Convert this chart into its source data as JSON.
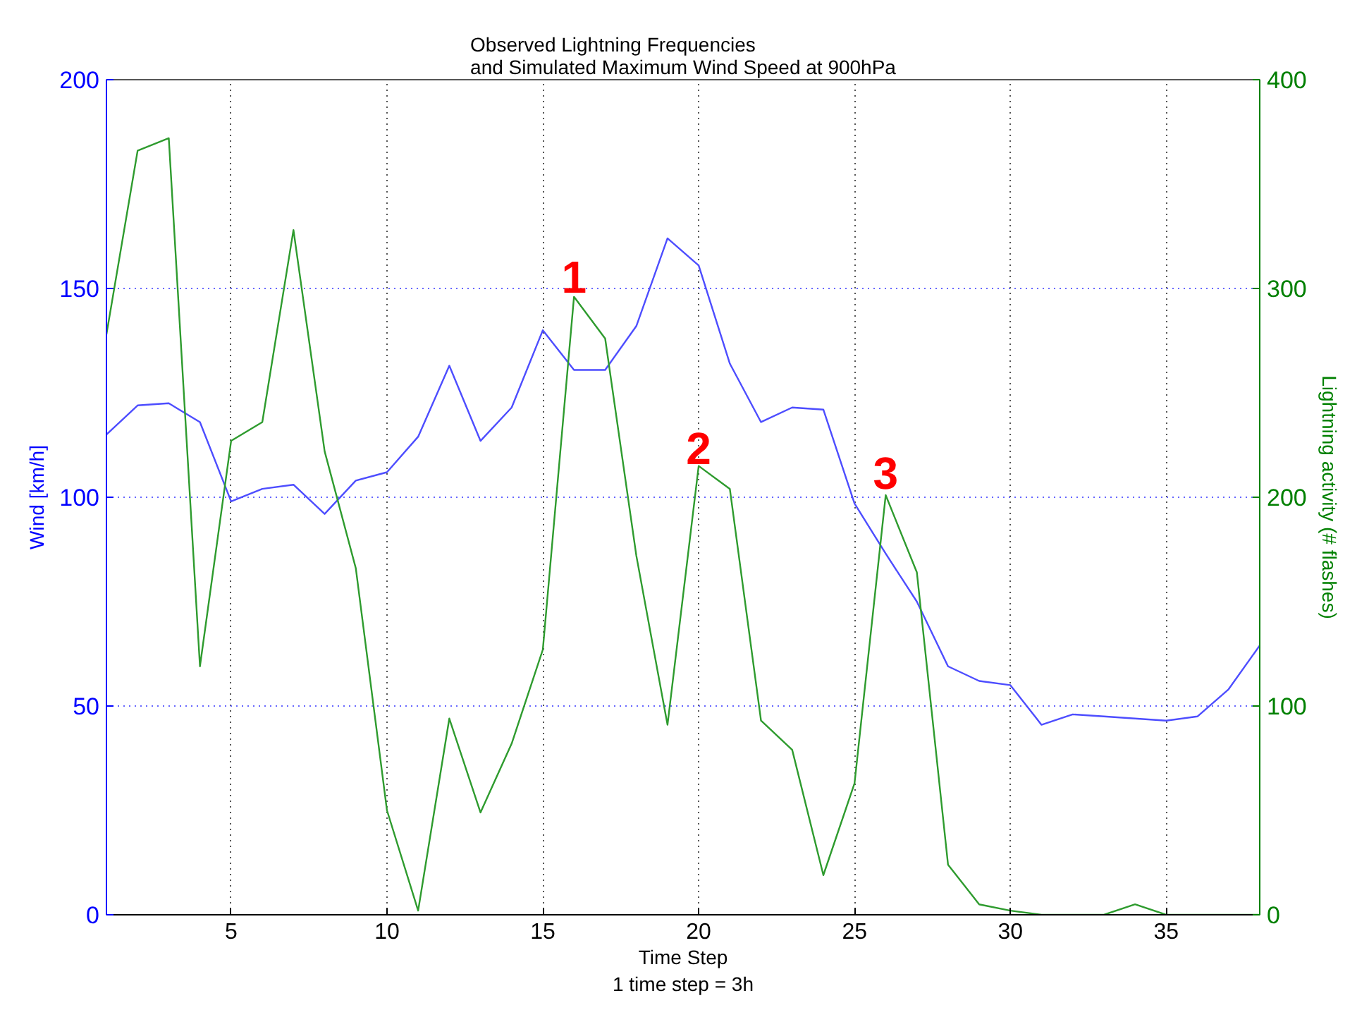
{
  "chart_data": {
    "type": "line",
    "title": "Observed Lightning Frequencies\nand Simulated Maximum Wind Speed at 900hPa",
    "xlabel": "Time Step\n1 time step = 3h",
    "ylabel": "Wind [km/h]",
    "y2label": "Lightning activity (# flashes)",
    "x": [
      1,
      2,
      3,
      4,
      5,
      6,
      7,
      8,
      9,
      10,
      11,
      12,
      13,
      14,
      15,
      16,
      17,
      18,
      19,
      20,
      21,
      22,
      23,
      24,
      25,
      26,
      27,
      28,
      29,
      30,
      31,
      32,
      33,
      34,
      35,
      36,
      37,
      38
    ],
    "series": [
      {
        "color": "#4d4dff",
        "values": [
          115,
          122,
          122.5,
          118,
          99,
          102,
          103,
          96,
          104,
          106,
          114.5,
          131.5,
          113.5,
          121.5,
          140,
          130.5,
          130.5,
          141,
          162,
          155.5,
          132,
          118,
          121.5,
          121,
          98.5,
          86.5,
          75,
          59.5,
          56,
          55,
          45.5,
          48,
          47.5,
          47,
          46.5,
          47.5,
          54,
          64.5
        ]
      },
      {
        "color": "#2e9b2e",
        "axis": "y2",
        "values": [
          278,
          366,
          372,
          119,
          227,
          236,
          328,
          222,
          166,
          50,
          2,
          94,
          49,
          82,
          127,
          296,
          276,
          172,
          91,
          215,
          204,
          93,
          79,
          19,
          63,
          201,
          164,
          24,
          5,
          2,
          0,
          0,
          0,
          5,
          0,
          0,
          0,
          0
        ]
      }
    ],
    "xlim": [
      1,
      38
    ],
    "xticks": [
      5,
      10,
      15,
      20,
      25,
      30,
      35
    ],
    "ylim": [
      0,
      200
    ],
    "yticks": [
      0,
      50,
      100,
      150,
      200
    ],
    "y2lim": [
      0,
      400
    ],
    "y2ticks": [
      0,
      100,
      200,
      300,
      400
    ],
    "grid": true,
    "marker": "none",
    "line_style": "solid",
    "annotations": [
      {
        "text": "1",
        "x": 16,
        "y": 149
      },
      {
        "text": "2",
        "x": 20,
        "y": 108
      },
      {
        "text": "3",
        "x": 26,
        "y": 102
      }
    ]
  }
}
